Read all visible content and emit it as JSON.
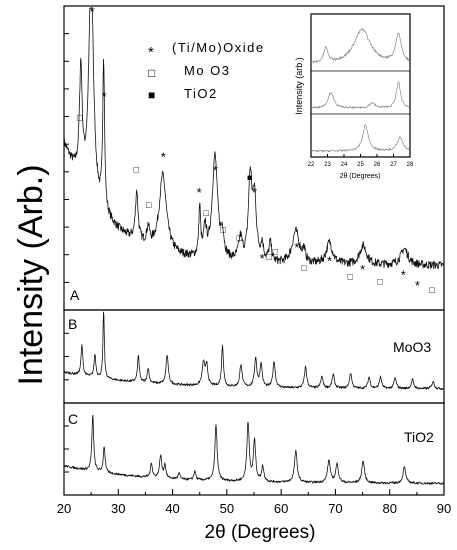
{
  "chart_data": {
    "type": "line",
    "ylabel": "Intensity (Arb.)",
    "xlabel": "2θ (Degrees)",
    "x_ticks": [
      20,
      30,
      40,
      50,
      60,
      70,
      80,
      90
    ],
    "xlim": [
      20,
      90
    ],
    "panels": [
      {
        "label": "A",
        "name": "",
        "background": {
          "start": 0.5,
          "end": 0.06,
          "decay": 8
        },
        "peaks": [
          {
            "x": 23.1,
            "h": 0.4,
            "w": 0.3
          },
          {
            "x": 25.0,
            "h": 0.85,
            "w": 0.5
          },
          {
            "x": 27.3,
            "h": 0.55,
            "w": 0.2
          },
          {
            "x": 33.4,
            "h": 0.18,
            "w": 0.3
          },
          {
            "x": 35.5,
            "h": 0.06,
            "w": 0.3
          },
          {
            "x": 38.2,
            "h": 0.28,
            "w": 0.8
          },
          {
            "x": 45.0,
            "h": 0.18,
            "w": 0.2
          },
          {
            "x": 46.0,
            "h": 0.1,
            "w": 0.3
          },
          {
            "x": 47.8,
            "h": 0.38,
            "w": 0.6
          },
          {
            "x": 49.2,
            "h": 0.08,
            "w": 0.3
          },
          {
            "x": 52.5,
            "h": 0.08,
            "w": 0.4
          },
          {
            "x": 54.3,
            "h": 0.3,
            "w": 0.4
          },
          {
            "x": 55.1,
            "h": 0.22,
            "w": 0.4
          },
          {
            "x": 56.5,
            "h": 0.06,
            "w": 0.3
          },
          {
            "x": 58.0,
            "h": 0.07,
            "w": 0.3
          },
          {
            "x": 62.7,
            "h": 0.12,
            "w": 0.8
          },
          {
            "x": 64.2,
            "h": 0.04,
            "w": 0.3
          },
          {
            "x": 68.9,
            "h": 0.08,
            "w": 0.7
          },
          {
            "x": 75.1,
            "h": 0.07,
            "w": 0.8
          },
          {
            "x": 82.7,
            "h": 0.06,
            "w": 0.8
          }
        ],
        "legend": [
          {
            "symbol": "*",
            "label": "(Ti/Mo)Oxide"
          },
          {
            "symbol": "□",
            "label": "Mo O3"
          },
          {
            "symbol": "■",
            "label": "TiO2"
          }
        ],
        "markers": [
          {
            "x": 25.2,
            "y": 0.97,
            "symbol": "*"
          },
          {
            "x": 27.4,
            "y": 0.66,
            "symbol": "*"
          },
          {
            "x": 22.9,
            "y": 0.59,
            "symbol": "□"
          },
          {
            "x": 33.3,
            "y": 0.4,
            "symbol": "□"
          },
          {
            "x": 35.6,
            "y": 0.27,
            "symbol": "□"
          },
          {
            "x": 38.3,
            "y": 0.44,
            "symbol": "*"
          },
          {
            "x": 44.9,
            "y": 0.31,
            "symbol": "*"
          },
          {
            "x": 46.2,
            "y": 0.24,
            "symbol": "□"
          },
          {
            "x": 47.9,
            "y": 0.39,
            "symbol": "*"
          },
          {
            "x": 49.3,
            "y": 0.18,
            "symbol": "□"
          },
          {
            "x": 52.3,
            "y": 0.15,
            "symbol": "□"
          },
          {
            "x": 54.2,
            "y": 0.37,
            "symbol": "■"
          },
          {
            "x": 55.1,
            "y": 0.31,
            "symbol": "*"
          },
          {
            "x": 56.5,
            "y": 0.07,
            "symbol": "*"
          },
          {
            "x": 57.8,
            "y": 0.08,
            "symbol": "□"
          },
          {
            "x": 58.9,
            "y": 0.1,
            "symbol": "□"
          },
          {
            "x": 62.9,
            "y": 0.11,
            "symbol": "*"
          },
          {
            "x": 64.2,
            "y": 0.04,
            "symbol": "□"
          },
          {
            "x": 68.9,
            "y": 0.06,
            "symbol": "*"
          },
          {
            "x": 72.7,
            "y": 0.01,
            "symbol": "□"
          },
          {
            "x": 75.0,
            "y": 0.03,
            "symbol": "*"
          },
          {
            "x": 78.2,
            "y": -0.01,
            "symbol": "□"
          },
          {
            "x": 82.5,
            "y": 0.01,
            "symbol": "*"
          },
          {
            "x": 85.1,
            "y": -0.03,
            "symbol": "*"
          },
          {
            "x": 87.8,
            "y": -0.04,
            "symbol": "□"
          }
        ]
      },
      {
        "label": "B",
        "name": "MoO3",
        "background": {
          "start": 0.3,
          "end": 0.08,
          "decay": 15
        },
        "peaks": [
          {
            "x": 23.3,
            "h": 0.4,
            "w": 0.2
          },
          {
            "x": 25.7,
            "h": 0.3,
            "w": 0.2
          },
          {
            "x": 27.3,
            "h": 0.9,
            "w": 0.15
          },
          {
            "x": 33.7,
            "h": 0.35,
            "w": 0.2
          },
          {
            "x": 35.5,
            "h": 0.2,
            "w": 0.2
          },
          {
            "x": 39.0,
            "h": 0.38,
            "w": 0.25
          },
          {
            "x": 45.7,
            "h": 0.3,
            "w": 0.3
          },
          {
            "x": 46.3,
            "h": 0.25,
            "w": 0.25
          },
          {
            "x": 49.2,
            "h": 0.55,
            "w": 0.2
          },
          {
            "x": 52.6,
            "h": 0.3,
            "w": 0.25
          },
          {
            "x": 55.3,
            "h": 0.38,
            "w": 0.25
          },
          {
            "x": 56.3,
            "h": 0.3,
            "w": 0.25
          },
          {
            "x": 58.7,
            "h": 0.35,
            "w": 0.25
          },
          {
            "x": 64.5,
            "h": 0.28,
            "w": 0.25
          },
          {
            "x": 67.5,
            "h": 0.15,
            "w": 0.25
          },
          {
            "x": 69.6,
            "h": 0.18,
            "w": 0.25
          },
          {
            "x": 72.8,
            "h": 0.2,
            "w": 0.25
          },
          {
            "x": 76.2,
            "h": 0.15,
            "w": 0.25
          },
          {
            "x": 78.3,
            "h": 0.15,
            "w": 0.25
          },
          {
            "x": 81.0,
            "h": 0.14,
            "w": 0.25
          },
          {
            "x": 84.2,
            "h": 0.12,
            "w": 0.25
          },
          {
            "x": 88.0,
            "h": 0.1,
            "w": 0.25
          }
        ]
      },
      {
        "label": "C",
        "name": "TiO2",
        "background": {
          "start": 0.3,
          "end": 0.06,
          "decay": 15
        },
        "peaks": [
          {
            "x": 25.3,
            "h": 0.75,
            "w": 0.2
          },
          {
            "x": 27.4,
            "h": 0.35,
            "w": 0.2
          },
          {
            "x": 36.1,
            "h": 0.2,
            "w": 0.2
          },
          {
            "x": 37.8,
            "h": 0.3,
            "w": 0.25
          },
          {
            "x": 38.6,
            "h": 0.18,
            "w": 0.2
          },
          {
            "x": 41.2,
            "h": 0.08,
            "w": 0.2
          },
          {
            "x": 44.1,
            "h": 0.12,
            "w": 0.2
          },
          {
            "x": 48.0,
            "h": 0.75,
            "w": 0.25
          },
          {
            "x": 53.9,
            "h": 0.8,
            "w": 0.25
          },
          {
            "x": 55.1,
            "h": 0.55,
            "w": 0.25
          },
          {
            "x": 56.6,
            "h": 0.2,
            "w": 0.25
          },
          {
            "x": 62.7,
            "h": 0.42,
            "w": 0.3
          },
          {
            "x": 68.8,
            "h": 0.3,
            "w": 0.3
          },
          {
            "x": 70.3,
            "h": 0.25,
            "w": 0.3
          },
          {
            "x": 75.1,
            "h": 0.3,
            "w": 0.3
          },
          {
            "x": 82.7,
            "h": 0.22,
            "w": 0.3
          }
        ]
      }
    ],
    "inset": {
      "ylabel": "Intensity (arb.)",
      "xlabel": "2θ (Degrees)",
      "xlim": [
        22,
        28
      ],
      "x_ticks": [
        22,
        23,
        24,
        25,
        26,
        27,
        28
      ],
      "panels": [
        {
          "peaks": [
            {
              "x": 22.9,
              "h": 0.3,
              "w": 0.15
            },
            {
              "x": 25.1,
              "h": 0.7,
              "w": 0.6
            },
            {
              "x": 27.3,
              "h": 0.6,
              "w": 0.2
            }
          ]
        },
        {
          "peaks": [
            {
              "x": 23.2,
              "h": 0.45,
              "w": 0.2
            },
            {
              "x": 25.7,
              "h": 0.15,
              "w": 0.2
            },
            {
              "x": 27.3,
              "h": 0.75,
              "w": 0.15
            }
          ]
        },
        {
          "peaks": [
            {
              "x": 25.3,
              "h": 0.75,
              "w": 0.2
            },
            {
              "x": 27.4,
              "h": 0.4,
              "w": 0.2
            }
          ]
        }
      ]
    }
  }
}
